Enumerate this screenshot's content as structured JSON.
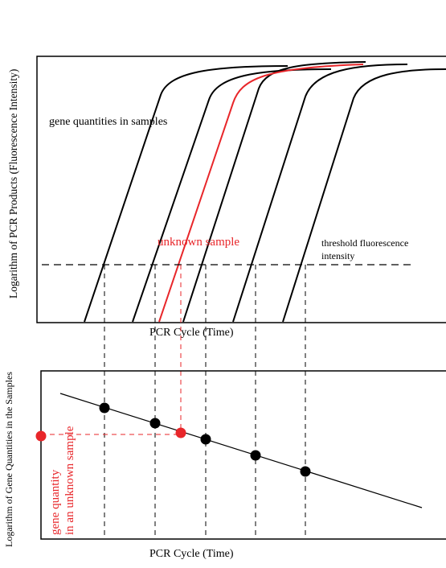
{
  "top_panel": {
    "ylabel": "Logarithm of PCR Products (Fluorescence Intensity)",
    "xlabel": "PCR Cycle (Time)",
    "annotation_gene_quantities": "gene quantities in samples",
    "annotation_unknown_sample": "unknown sample",
    "threshold_label_line1": "threshold fluorescence",
    "threshold_label_line2": "intensity"
  },
  "bottom_panel": {
    "ylabel": "Logarithm of Gene Quantities in the Samples",
    "xlabel": "PCR Cycle (Time)",
    "unknown_label_line1": "gene quantity",
    "unknown_label_line2": "in an unknown sample"
  },
  "colors": {
    "standard": "#000000",
    "unknown": "#e8262a"
  }
}
